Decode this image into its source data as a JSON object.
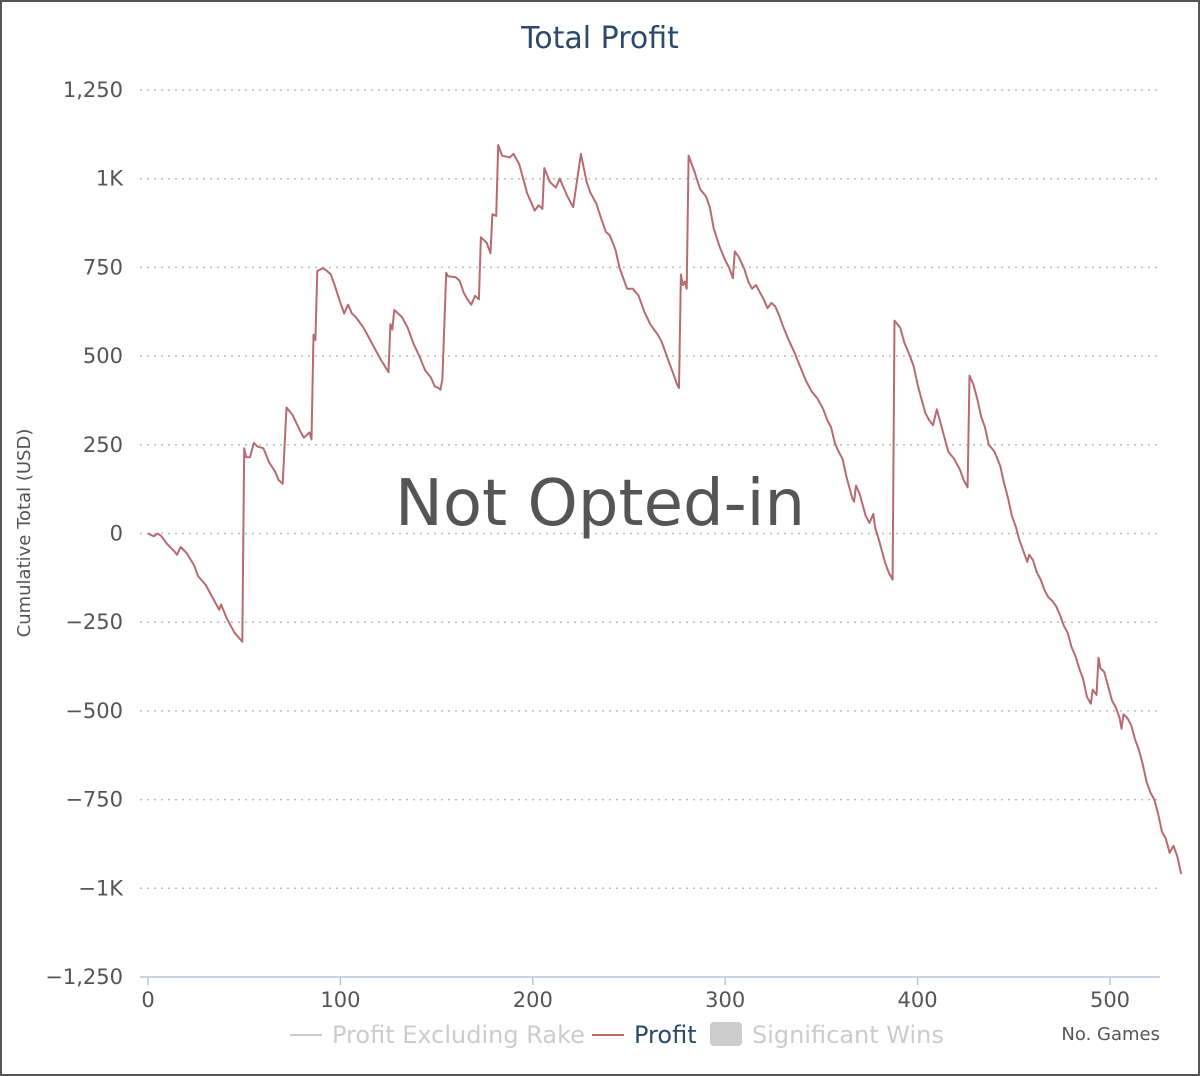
{
  "chart_data": {
    "type": "line",
    "title": "Total Profit",
    "ylabel": "Cumulative Total (USD)",
    "xlabel": "No. Games",
    "watermark": "Not Opted-in",
    "ylim": [
      -1250,
      1250
    ],
    "xlim": [
      0,
      525
    ],
    "y_ticks": [
      1250,
      1000,
      750,
      500,
      250,
      0,
      -250,
      -500,
      -750,
      -1000,
      -1250
    ],
    "y_tick_labels": [
      "1,250",
      "1K",
      "750",
      "500",
      "250",
      "0",
      "−250",
      "−500",
      "−750",
      "−1K",
      "−1,250"
    ],
    "x_ticks": [
      0,
      100,
      200,
      300,
      400,
      500
    ],
    "x_tick_labels": [
      "0",
      "100",
      "200",
      "300",
      "400",
      "500"
    ],
    "grid": "horizontal dotted",
    "legend_position": "bottom",
    "legend": [
      {
        "name": "Profit Excluding Rake",
        "active": false,
        "symbol": "line",
        "color": "#cccccc"
      },
      {
        "name": "Profit",
        "active": true,
        "symbol": "line",
        "color": "#b86b6f"
      },
      {
        "name": "Significant Wins",
        "active": false,
        "symbol": "box",
        "color": "#cccccc"
      }
    ],
    "series": [
      {
        "name": "Profit",
        "color": "#b86b6f",
        "points": [
          [
            0,
            0
          ],
          [
            3,
            -8
          ],
          [
            5,
            0
          ],
          [
            7,
            -8
          ],
          [
            10,
            -30
          ],
          [
            14,
            -52
          ],
          [
            15,
            -60
          ],
          [
            17,
            -38
          ],
          [
            20,
            -55
          ],
          [
            24,
            -90
          ],
          [
            26,
            -120
          ],
          [
            30,
            -145
          ],
          [
            33,
            -175
          ],
          [
            37,
            -215
          ],
          [
            38,
            -200
          ],
          [
            41,
            -240
          ],
          [
            45,
            -280
          ],
          [
            49,
            -305
          ],
          [
            50,
            240
          ],
          [
            51,
            215
          ],
          [
            53,
            215
          ],
          [
            55,
            255
          ],
          [
            57,
            245
          ],
          [
            60,
            240
          ],
          [
            63,
            200
          ],
          [
            66,
            175
          ],
          [
            68,
            150
          ],
          [
            70,
            140
          ],
          [
            72,
            355
          ],
          [
            75,
            335
          ],
          [
            79,
            290
          ],
          [
            81,
            270
          ],
          [
            84,
            285
          ],
          [
            85,
            265
          ],
          [
            86,
            560
          ],
          [
            87,
            545
          ],
          [
            88,
            740
          ],
          [
            91,
            748
          ],
          [
            93,
            740
          ],
          [
            95,
            730
          ],
          [
            97,
            700
          ],
          [
            100,
            650
          ],
          [
            102,
            620
          ],
          [
            104,
            645
          ],
          [
            106,
            620
          ],
          [
            108,
            610
          ],
          [
            112,
            580
          ],
          [
            115,
            550
          ],
          [
            118,
            520
          ],
          [
            121,
            490
          ],
          [
            125,
            455
          ],
          [
            126,
            590
          ],
          [
            127,
            575
          ],
          [
            128,
            630
          ],
          [
            132,
            610
          ],
          [
            135,
            580
          ],
          [
            138,
            535
          ],
          [
            141,
            500
          ],
          [
            144,
            460
          ],
          [
            147,
            440
          ],
          [
            149,
            415
          ],
          [
            151,
            410
          ],
          [
            152,
            405
          ],
          [
            153,
            435
          ],
          [
            155,
            735
          ],
          [
            156,
            725
          ],
          [
            160,
            722
          ],
          [
            162,
            712
          ],
          [
            164,
            680
          ],
          [
            166,
            660
          ],
          [
            168,
            645
          ],
          [
            170,
            670
          ],
          [
            172,
            660
          ],
          [
            173,
            835
          ],
          [
            176,
            820
          ],
          [
            178,
            790
          ],
          [
            179,
            900
          ],
          [
            181,
            895
          ],
          [
            182,
            1095
          ],
          [
            184,
            1065
          ],
          [
            188,
            1060
          ],
          [
            190,
            1070
          ],
          [
            193,
            1040
          ],
          [
            195,
            1000
          ],
          [
            197,
            960
          ],
          [
            199,
            935
          ],
          [
            201,
            910
          ],
          [
            203,
            925
          ],
          [
            205,
            915
          ],
          [
            206,
            1030
          ],
          [
            209,
            990
          ],
          [
            212,
            975
          ],
          [
            214,
            1000
          ],
          [
            216,
            975
          ],
          [
            218,
            950
          ],
          [
            221,
            920
          ],
          [
            225,
            1070
          ],
          [
            228,
            990
          ],
          [
            230,
            960
          ],
          [
            233,
            930
          ],
          [
            236,
            880
          ],
          [
            238,
            850
          ],
          [
            240,
            840
          ],
          [
            243,
            800
          ],
          [
            245,
            750
          ],
          [
            247,
            720
          ],
          [
            249,
            690
          ],
          [
            252,
            690
          ],
          [
            255,
            670
          ],
          [
            258,
            625
          ],
          [
            261,
            590
          ],
          [
            263,
            575
          ],
          [
            265,
            560
          ],
          [
            267,
            540
          ],
          [
            269,
            510
          ],
          [
            271,
            480
          ],
          [
            273,
            450
          ],
          [
            275,
            420
          ],
          [
            276,
            410
          ],
          [
            277,
            730
          ],
          [
            278,
            700
          ],
          [
            279,
            710
          ],
          [
            280,
            690
          ],
          [
            281,
            1065
          ],
          [
            284,
            1020
          ],
          [
            287,
            970
          ],
          [
            290,
            950
          ],
          [
            292,
            920
          ],
          [
            294,
            860
          ],
          [
            297,
            810
          ],
          [
            300,
            770
          ],
          [
            302,
            750
          ],
          [
            304,
            720
          ],
          [
            305,
            795
          ],
          [
            307,
            780
          ],
          [
            310,
            745
          ],
          [
            312,
            710
          ],
          [
            314,
            690
          ],
          [
            316,
            700
          ],
          [
            318,
            680
          ],
          [
            320,
            660
          ],
          [
            322,
            635
          ],
          [
            324,
            650
          ],
          [
            326,
            640
          ],
          [
            328,
            615
          ],
          [
            330,
            585
          ],
          [
            333,
            545
          ],
          [
            336,
            510
          ],
          [
            339,
            470
          ],
          [
            342,
            430
          ],
          [
            345,
            400
          ],
          [
            348,
            380
          ],
          [
            351,
            350
          ],
          [
            353,
            320
          ],
          [
            355,
            300
          ],
          [
            357,
            255
          ],
          [
            359,
            230
          ],
          [
            361,
            210
          ],
          [
            363,
            160
          ],
          [
            365,
            120
          ],
          [
            366,
            100
          ],
          [
            367,
            90
          ],
          [
            368,
            135
          ],
          [
            370,
            110
          ],
          [
            372,
            70
          ],
          [
            373,
            50
          ],
          [
            375,
            30
          ],
          [
            377,
            55
          ],
          [
            378,
            15
          ],
          [
            380,
            -20
          ],
          [
            382,
            -60
          ],
          [
            383,
            -80
          ],
          [
            385,
            -110
          ],
          [
            386,
            -120
          ],
          [
            387,
            -130
          ],
          [
            388,
            600
          ],
          [
            391,
            580
          ],
          [
            393,
            540
          ],
          [
            396,
            500
          ],
          [
            398,
            470
          ],
          [
            400,
            420
          ],
          [
            402,
            380
          ],
          [
            404,
            340
          ],
          [
            406,
            320
          ],
          [
            408,
            305
          ],
          [
            410,
            350
          ],
          [
            412,
            310
          ],
          [
            414,
            270
          ],
          [
            416,
            230
          ],
          [
            419,
            210
          ],
          [
            422,
            180
          ],
          [
            424,
            150
          ],
          [
            426,
            130
          ],
          [
            427,
            445
          ],
          [
            429,
            420
          ],
          [
            431,
            380
          ],
          [
            433,
            330
          ],
          [
            435,
            300
          ],
          [
            437,
            250
          ],
          [
            440,
            230
          ],
          [
            443,
            190
          ],
          [
            445,
            140
          ],
          [
            447,
            100
          ],
          [
            449,
            50
          ],
          [
            451,
            20
          ],
          [
            453,
            -20
          ],
          [
            455,
            -50
          ],
          [
            457,
            -80
          ],
          [
            458,
            -60
          ],
          [
            460,
            -75
          ],
          [
            462,
            -110
          ],
          [
            464,
            -130
          ],
          [
            466,
            -160
          ],
          [
            468,
            -180
          ],
          [
            470,
            -190
          ],
          [
            472,
            -205
          ],
          [
            474,
            -230
          ],
          [
            476,
            -260
          ],
          [
            478,
            -280
          ],
          [
            480,
            -320
          ],
          [
            482,
            -345
          ],
          [
            484,
            -380
          ],
          [
            486,
            -410
          ],
          [
            488,
            -460
          ],
          [
            490,
            -480
          ],
          [
            491,
            -440
          ],
          [
            493,
            -455
          ],
          [
            494,
            -350
          ],
          [
            495,
            -380
          ],
          [
            497,
            -390
          ],
          [
            499,
            -430
          ],
          [
            501,
            -470
          ],
          [
            503,
            -490
          ],
          [
            505,
            -520
          ],
          [
            506,
            -550
          ],
          [
            507,
            -510
          ],
          [
            509,
            -520
          ],
          [
            511,
            -540
          ],
          [
            513,
            -580
          ],
          [
            515,
            -610
          ],
          [
            517,
            -650
          ],
          [
            519,
            -700
          ],
          [
            521,
            -730
          ],
          [
            523,
            -750
          ],
          [
            525,
            -790
          ],
          [
            527,
            -840
          ],
          [
            529,
            -860
          ],
          [
            531,
            -900
          ],
          [
            533,
            -880
          ],
          [
            535,
            -910
          ],
          [
            537,
            -960
          ]
        ]
      }
    ]
  }
}
